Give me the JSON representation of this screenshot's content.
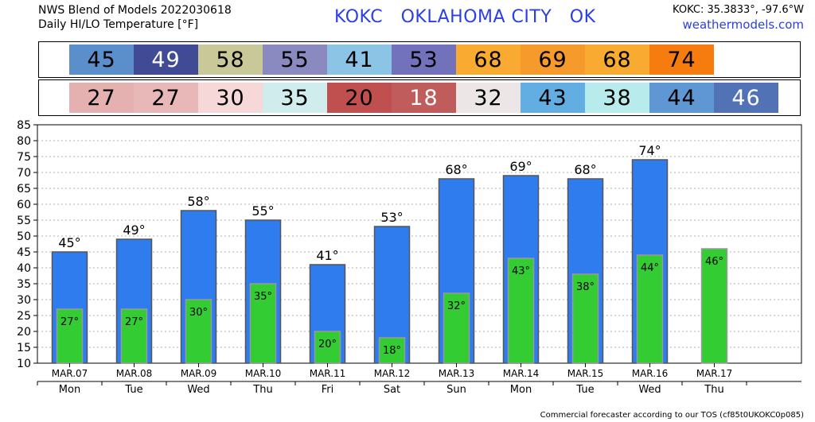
{
  "header": {
    "title_line1": "NWS Blend of Models 2022030618",
    "title_line2": "Daily HI/LO Temperature [°F]",
    "station": "KOKC   OKLAHOMA CITY   OK",
    "coords": "KOKC: 35.3833°, -97.6°W",
    "site": "weathermodels.com"
  },
  "footer": "Commercial forecaster according to our TOS (cf85t0UKOKC0p085)",
  "hi_boxes": [
    {
      "value": "45",
      "bg": "#5b8fcc",
      "fg": "#000000"
    },
    {
      "value": "49",
      "bg": "#414a94",
      "fg": "#ffffff"
    },
    {
      "value": "58",
      "bg": "#c8c898",
      "fg": "#000000"
    },
    {
      "value": "55",
      "bg": "#8a8ac0",
      "fg": "#000000"
    },
    {
      "value": "41",
      "bg": "#8bc4e4",
      "fg": "#000000"
    },
    {
      "value": "53",
      "bg": "#7272bc",
      "fg": "#000000"
    },
    {
      "value": "68",
      "bg": "#f8ab30",
      "fg": "#000000"
    },
    {
      "value": "69",
      "bg": "#f69a2c",
      "fg": "#000000"
    },
    {
      "value": "68",
      "bg": "#f8ab30",
      "fg": "#000000"
    },
    {
      "value": "74",
      "bg": "#f67c10",
      "fg": "#000000"
    }
  ],
  "lo_boxes": [
    {
      "value": "27",
      "bg": "#e4b0b0",
      "fg": "#000000"
    },
    {
      "value": "27",
      "bg": "#e8b8b8",
      "fg": "#000000"
    },
    {
      "value": "30",
      "bg": "#f6d8d8",
      "fg": "#000000"
    },
    {
      "value": "35",
      "bg": "#d0ecec",
      "fg": "#000000"
    },
    {
      "value": "20",
      "bg": "#c05050",
      "fg": "#000000"
    },
    {
      "value": "18",
      "bg": "#c05c5c",
      "fg": "#ffffff"
    },
    {
      "value": "32",
      "bg": "#ece6e6",
      "fg": "#000000"
    },
    {
      "value": "43",
      "bg": "#62aee2",
      "fg": "#000000"
    },
    {
      "value": "38",
      "bg": "#b8ecec",
      "fg": "#000000"
    },
    {
      "value": "44",
      "bg": "#5f96d4",
      "fg": "#000000"
    },
    {
      "value": "46",
      "bg": "#5272b6",
      "fg": "#ffffff"
    }
  ],
  "chart_data": {
    "type": "bar",
    "categories": [
      "MAR.07",
      "MAR.08",
      "MAR.09",
      "MAR.10",
      "MAR.11",
      "MAR.12",
      "MAR.13",
      "MAR.14",
      "MAR.15",
      "MAR.16",
      "MAR.17"
    ],
    "weekdays": [
      "Mon",
      "Tue",
      "Wed",
      "Thu",
      "Fri",
      "Sat",
      "Sun",
      "Mon",
      "Tue",
      "Wed",
      "Thu"
    ],
    "series": [
      {
        "values": [
          45,
          49,
          58,
          55,
          41,
          53,
          68,
          69,
          68,
          74,
          null
        ],
        "color": "#2f7cef"
      },
      {
        "values": [
          27,
          27,
          30,
          35,
          20,
          18,
          32,
          43,
          38,
          44,
          46
        ],
        "color": "#33cc33"
      }
    ],
    "hi_labels": [
      "45°",
      "49°",
      "58°",
      "55°",
      "41°",
      "53°",
      "68°",
      "69°",
      "68°",
      "74°",
      ""
    ],
    "lo_labels": [
      "27°",
      "27°",
      "30°",
      "35°",
      "20°",
      "18°",
      "32°",
      "43°",
      "38°",
      "44°",
      "46°"
    ],
    "yticks": [
      "10",
      "15",
      "20",
      "25",
      "30",
      "35",
      "40",
      "45",
      "50",
      "55",
      "60",
      "65",
      "70",
      "75",
      "80",
      "85"
    ],
    "ylim": [
      10,
      85
    ],
    "grid": true
  }
}
